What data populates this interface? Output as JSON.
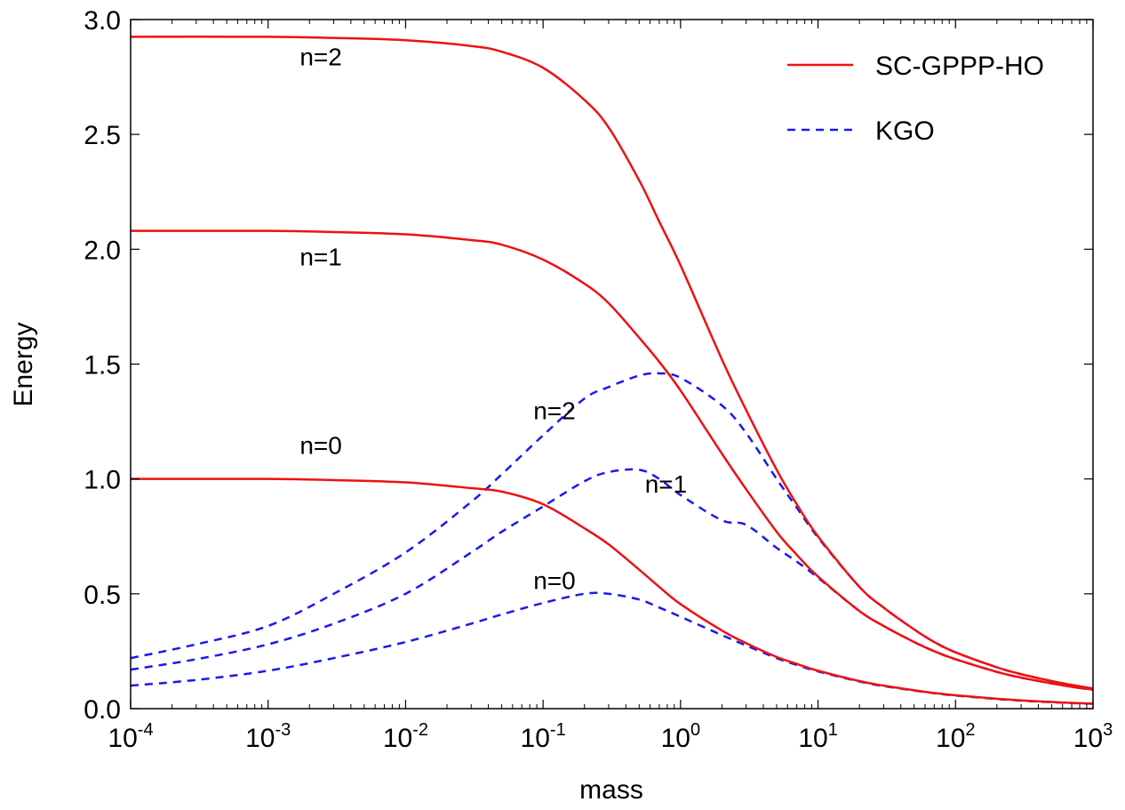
{
  "chart_data": {
    "type": "line",
    "xlabel": "mass",
    "ylabel": "Energy",
    "xscale": "log",
    "xlim": [
      0.0001,
      1000
    ],
    "ylim": [
      0,
      3.0
    ],
    "x_ticks": [
      {
        "base": "10",
        "exp": "-4"
      },
      {
        "base": "10",
        "exp": "-3"
      },
      {
        "base": "10",
        "exp": "-2"
      },
      {
        "base": "10",
        "exp": "-1"
      },
      {
        "base": "10",
        "exp": "0"
      },
      {
        "base": "10",
        "exp": "1"
      },
      {
        "base": "10",
        "exp": "2"
      },
      {
        "base": "10",
        "exp": "3"
      }
    ],
    "y_ticks": [
      "0.0",
      "0.5",
      "1.0",
      "1.5",
      "2.0",
      "2.5",
      "3.0"
    ],
    "grid": false,
    "legend_position": "top-right",
    "series": [
      {
        "name": "SC-GPPP-HO",
        "color": "#ee1111",
        "dash": "solid",
        "level": "n=0",
        "x": [
          0.0001,
          0.001,
          0.003,
          0.01,
          0.03,
          0.05,
          0.1,
          0.2,
          0.3,
          0.5,
          0.7,
          1,
          2,
          3,
          5,
          7,
          10,
          20,
          30,
          50,
          70,
          100,
          200,
          300,
          500,
          700,
          1000
        ],
        "y": [
          1.0,
          1.0,
          0.995,
          0.985,
          0.96,
          0.945,
          0.89,
          0.785,
          0.715,
          0.605,
          0.53,
          0.455,
          0.34,
          0.285,
          0.225,
          0.195,
          0.165,
          0.12,
          0.1,
          0.08,
          0.068,
          0.058,
          0.043,
          0.036,
          0.029,
          0.025,
          0.022
        ]
      },
      {
        "name": "SC-GPPP-HO",
        "color": "#ee1111",
        "dash": "solid",
        "level": "n=1",
        "x": [
          0.0001,
          0.001,
          0.003,
          0.01,
          0.03,
          0.05,
          0.1,
          0.2,
          0.3,
          0.5,
          0.7,
          1,
          2,
          3,
          5,
          7,
          10,
          20,
          30,
          50,
          70,
          100,
          200,
          300,
          500,
          700,
          1000
        ],
        "y": [
          2.08,
          2.08,
          2.075,
          2.065,
          2.04,
          2.02,
          1.955,
          1.85,
          1.765,
          1.615,
          1.51,
          1.385,
          1.11,
          0.955,
          0.77,
          0.67,
          0.575,
          0.425,
          0.36,
          0.29,
          0.25,
          0.215,
          0.16,
          0.135,
          0.11,
          0.095,
          0.083
        ]
      },
      {
        "name": "SC-GPPP-HO",
        "color": "#ee1111",
        "dash": "solid",
        "level": "n=2",
        "x": [
          0.0001,
          0.001,
          0.003,
          0.01,
          0.03,
          0.05,
          0.1,
          0.2,
          0.3,
          0.5,
          0.7,
          1,
          2,
          3,
          5,
          7,
          10,
          20,
          30,
          50,
          70,
          100,
          200,
          300,
          500,
          700,
          1000
        ],
        "y": [
          2.925,
          2.925,
          2.92,
          2.91,
          2.885,
          2.86,
          2.79,
          2.65,
          2.53,
          2.3,
          2.12,
          1.93,
          1.52,
          1.3,
          1.04,
          0.89,
          0.75,
          0.53,
          0.44,
          0.345,
          0.29,
          0.245,
          0.18,
          0.15,
          0.12,
          0.103,
          0.088
        ]
      },
      {
        "name": "KGO",
        "color": "#1a1aee",
        "dash": "dashed",
        "level": "n=0",
        "x": [
          0.0001,
          0.0003,
          0.001,
          0.003,
          0.01,
          0.03,
          0.05,
          0.1,
          0.2,
          0.3,
          0.5,
          0.7,
          1,
          2,
          3,
          5,
          7,
          10,
          20,
          30,
          50,
          70,
          100,
          200,
          300,
          500,
          700,
          1000
        ],
        "y": [
          0.1,
          0.125,
          0.165,
          0.22,
          0.29,
          0.37,
          0.41,
          0.46,
          0.5,
          0.5,
          0.475,
          0.44,
          0.4,
          0.32,
          0.275,
          0.22,
          0.19,
          0.162,
          0.118,
          0.098,
          0.079,
          0.067,
          0.057,
          0.042,
          0.035,
          0.028,
          0.024,
          0.021
        ]
      },
      {
        "name": "KGO",
        "color": "#1a1aee",
        "dash": "dashed",
        "level": "n=1",
        "x": [
          0.0001,
          0.0003,
          0.001,
          0.003,
          0.01,
          0.03,
          0.05,
          0.1,
          0.2,
          0.3,
          0.5,
          0.7,
          1,
          2,
          3,
          5,
          7,
          10,
          20,
          30,
          50,
          70,
          100,
          200,
          300,
          500,
          700,
          1000
        ],
        "y": [
          0.17,
          0.215,
          0.28,
          0.37,
          0.5,
          0.68,
          0.77,
          0.88,
          0.99,
          1.03,
          1.04,
          1.0,
          0.93,
          0.82,
          0.8,
          0.7,
          0.64,
          0.57,
          0.425,
          0.36,
          0.29,
          0.25,
          0.215,
          0.16,
          0.135,
          0.11,
          0.095,
          0.082
        ]
      },
      {
        "name": "KGO",
        "color": "#1a1aee",
        "dash": "dashed",
        "level": "n=2",
        "x": [
          0.0001,
          0.0003,
          0.001,
          0.003,
          0.01,
          0.03,
          0.05,
          0.1,
          0.2,
          0.3,
          0.5,
          0.7,
          1,
          2,
          3,
          5,
          7,
          10,
          20,
          30,
          50,
          70,
          100,
          200,
          300,
          500,
          700,
          1000
        ],
        "y": [
          0.22,
          0.28,
          0.36,
          0.5,
          0.68,
          0.9,
          1.02,
          1.19,
          1.35,
          1.4,
          1.45,
          1.46,
          1.44,
          1.32,
          1.2,
          1.0,
          0.875,
          0.745,
          0.53,
          0.44,
          0.345,
          0.29,
          0.245,
          0.18,
          0.15,
          0.12,
          0.103,
          0.087
        ]
      }
    ],
    "legend": [
      {
        "label": "SC-GPPP-HO",
        "color": "#ee1111",
        "dash": "solid"
      },
      {
        "label": "KGO",
        "color": "#1a1aee",
        "dash": "dashed"
      }
    ],
    "annotations": [
      {
        "text": "n=2",
        "x": 0.0017,
        "y": 2.8
      },
      {
        "text": "n=1",
        "x": 0.0017,
        "y": 1.93
      },
      {
        "text": "n=0",
        "x": 0.0017,
        "y": 1.11
      },
      {
        "text": "n=2",
        "x": 0.085,
        "y": 1.26
      },
      {
        "text": "n=1",
        "x": 0.55,
        "y": 0.94
      },
      {
        "text": "n=0",
        "x": 0.085,
        "y": 0.52
      }
    ]
  }
}
